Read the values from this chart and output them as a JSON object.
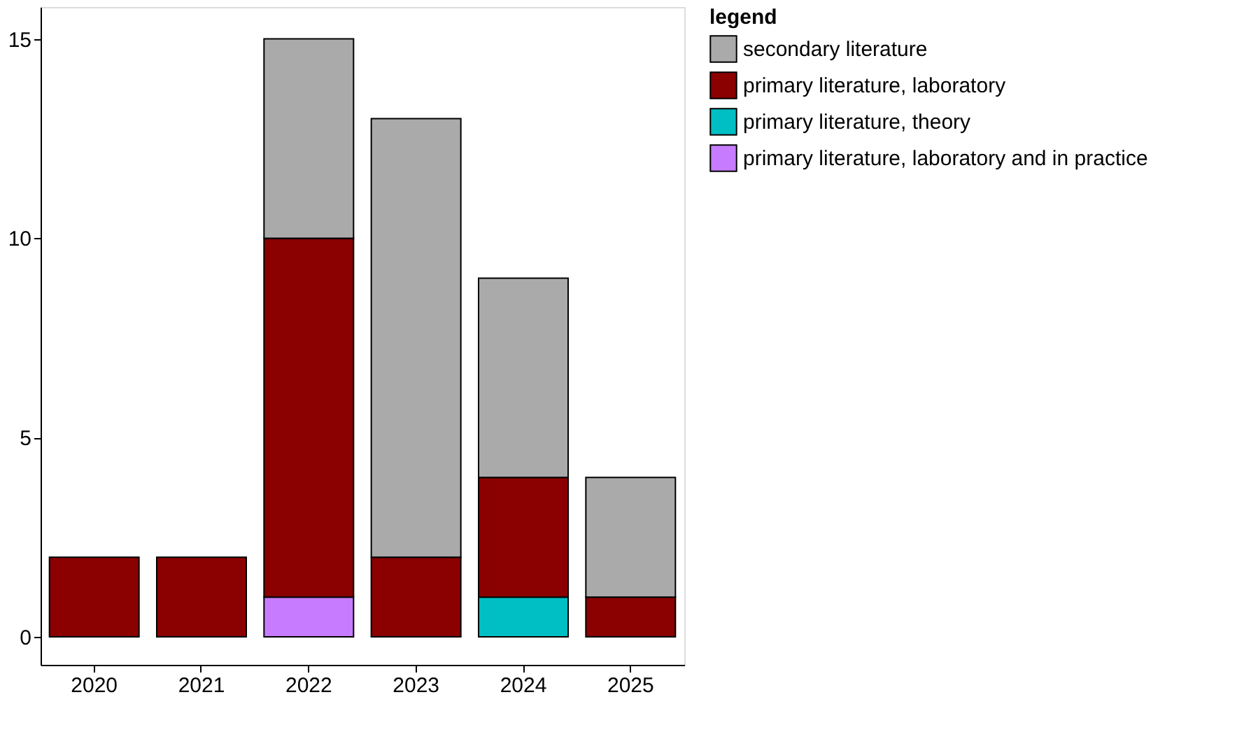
{
  "chart_data": {
    "type": "bar",
    "stacked": true,
    "legend_title": "legend",
    "legend": "right",
    "grid": false,
    "categories": [
      "2020",
      "2021",
      "2022",
      "2023",
      "2024",
      "2025"
    ],
    "ylim": [
      -0.7,
      15.8
    ],
    "yticks": [
      0,
      5,
      10,
      15
    ],
    "series": [
      {
        "name": "primary literature, laboratory and in practice",
        "color": "#c77cff",
        "values": [
          0,
          0,
          1,
          0,
          0,
          0
        ]
      },
      {
        "name": "primary literature, theory",
        "color": "#00bfc4",
        "values": [
          0,
          0,
          0,
          0,
          1,
          0
        ]
      },
      {
        "name": "primary literature, laboratory",
        "color": "#8b0000",
        "values": [
          2,
          2,
          9,
          2,
          3,
          1
        ]
      },
      {
        "name": "secondary literature",
        "color": "#aaaaaa",
        "values": [
          0,
          0,
          5,
          11,
          5,
          3
        ]
      }
    ]
  }
}
